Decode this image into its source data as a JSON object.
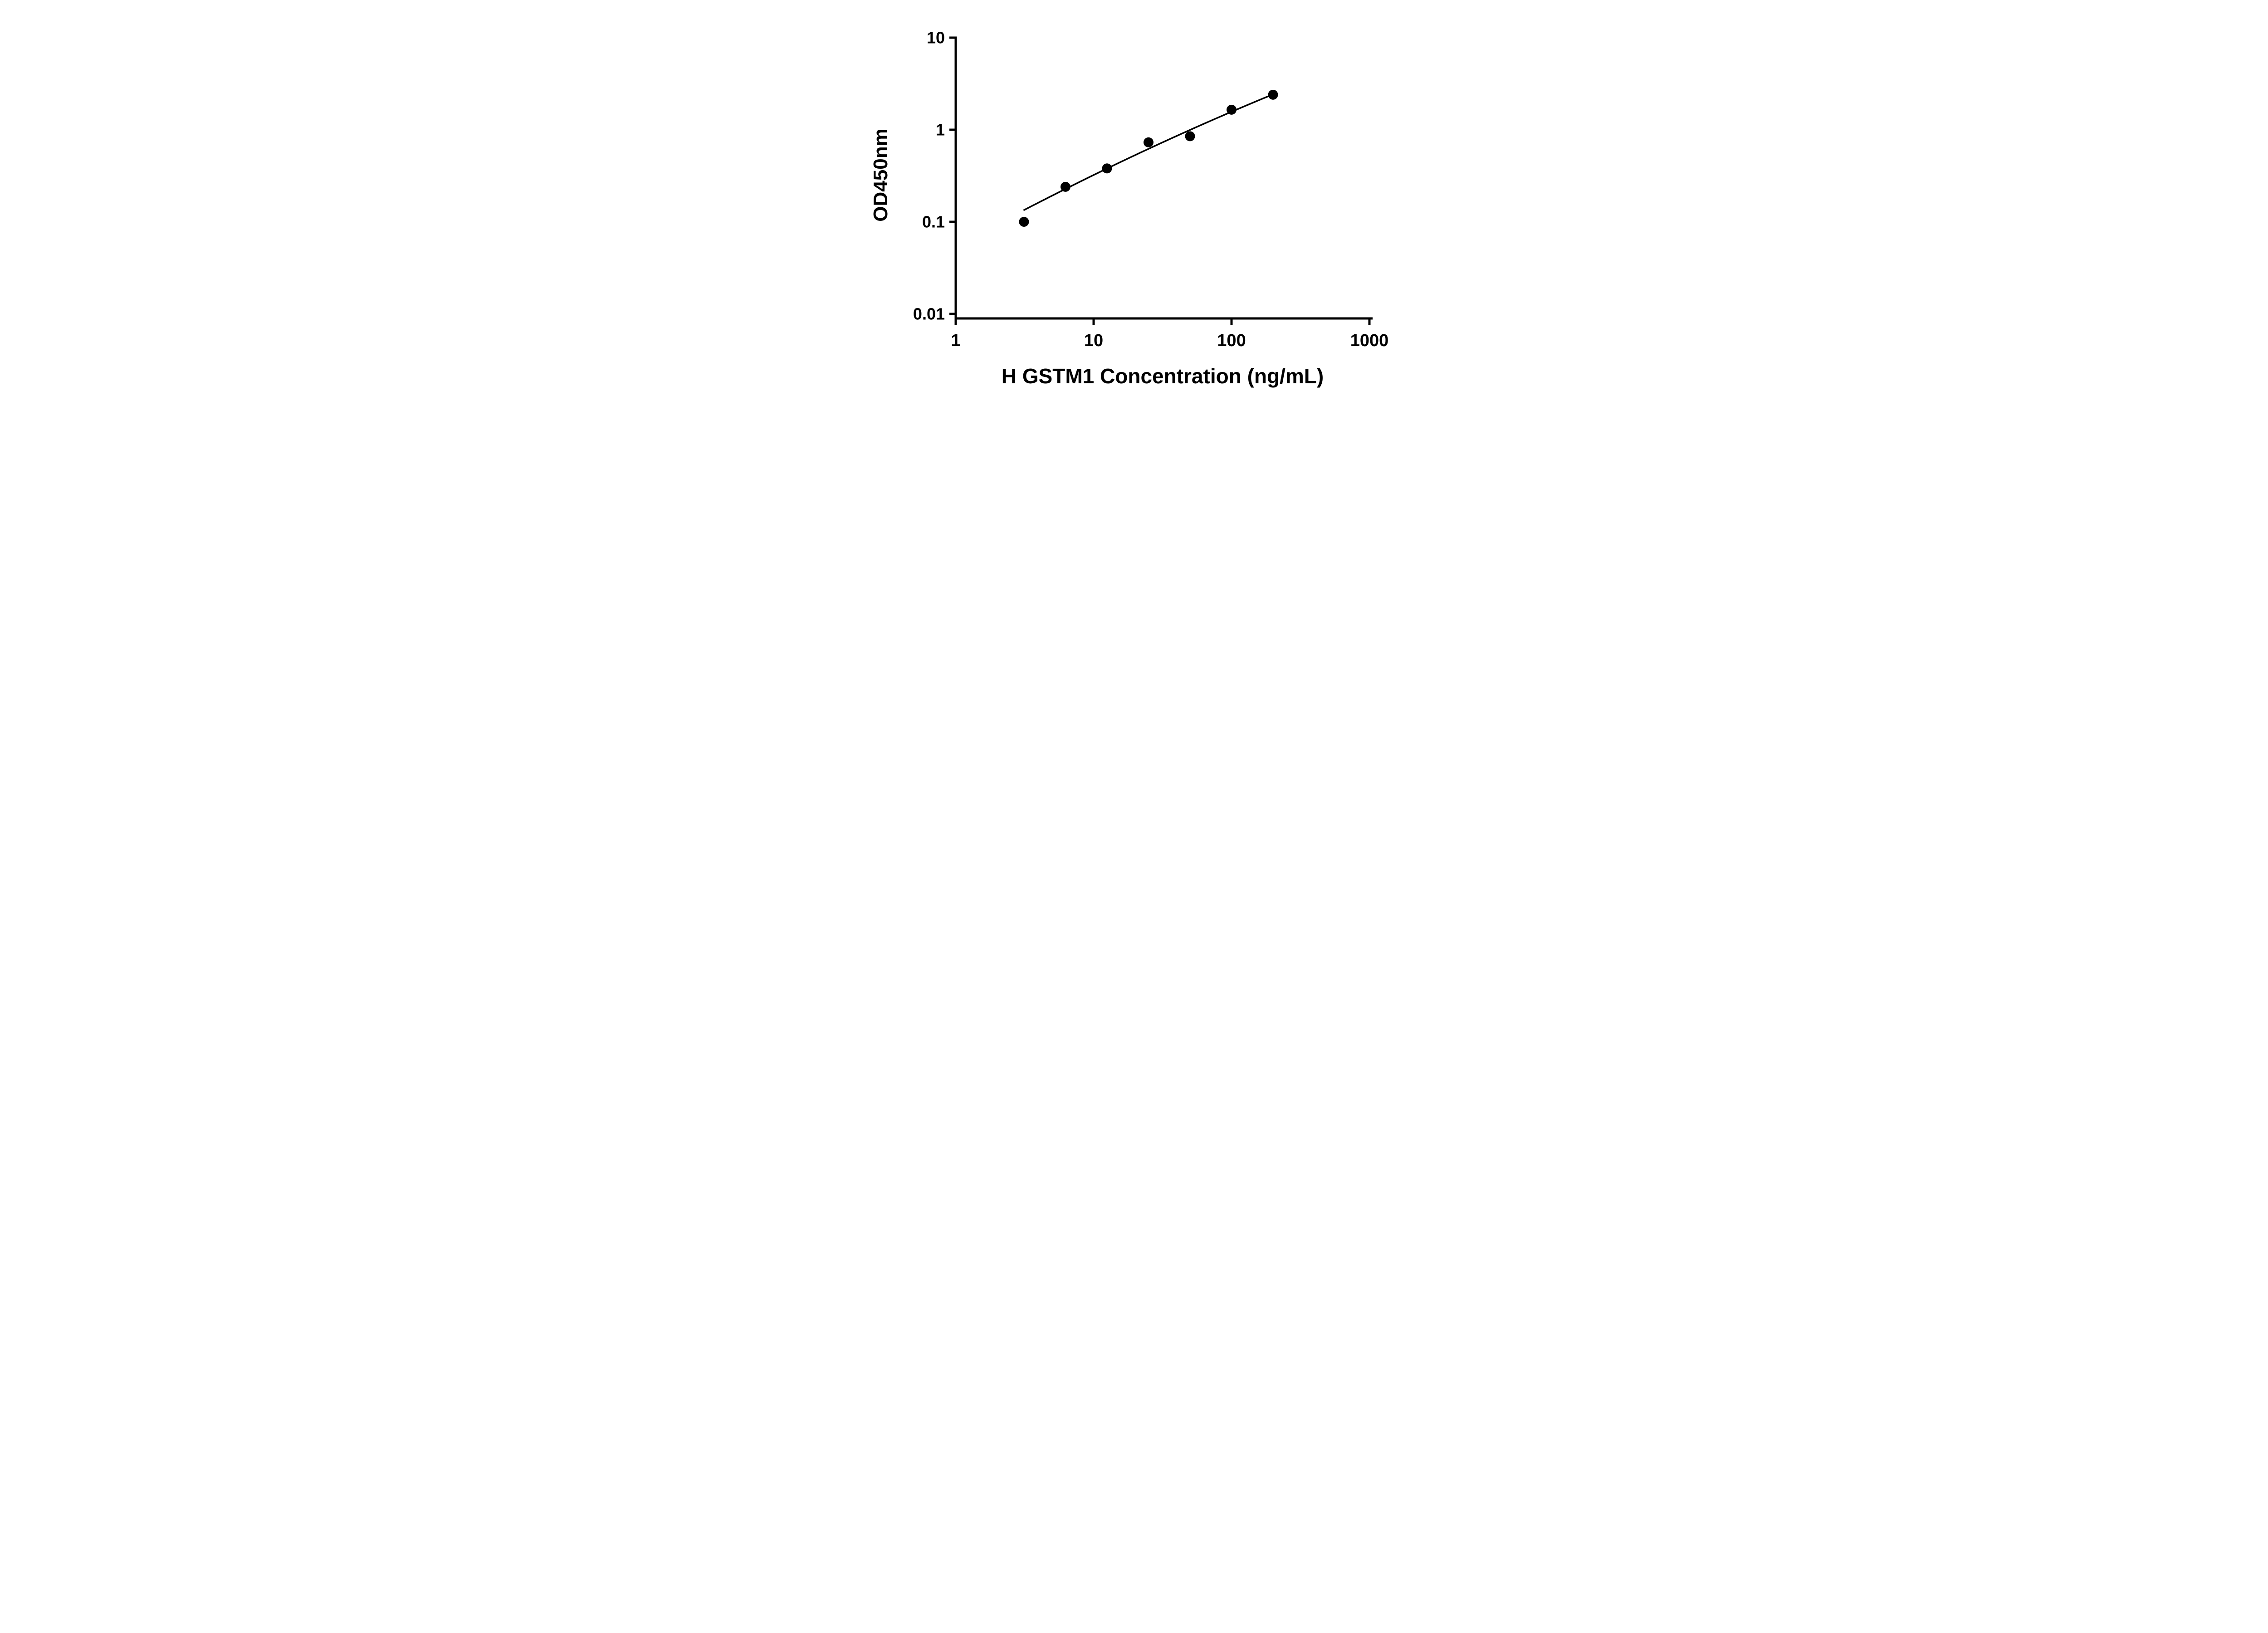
{
  "chart_data": {
    "type": "scatter",
    "title": "",
    "xlabel": "H GSTM1 Concentration (ng/mL)",
    "ylabel": "OD450nm",
    "x_scale": "log",
    "y_scale": "log",
    "xlim": [
      1,
      1000
    ],
    "ylim": [
      0.01,
      10
    ],
    "x_ticks": [
      1,
      10,
      100,
      1000
    ],
    "x_tick_labels": [
      "1",
      "10",
      "100",
      "1000"
    ],
    "y_ticks": [
      0.01,
      0.1,
      1,
      10
    ],
    "y_tick_labels": [
      "0.01",
      "0.1",
      "1",
      "10"
    ],
    "grid": "off",
    "legend": "none",
    "points": [
      {
        "x": 3.125,
        "y": 0.1
      },
      {
        "x": 6.25,
        "y": 0.24
      },
      {
        "x": 12.5,
        "y": 0.38
      },
      {
        "x": 25,
        "y": 0.73
      },
      {
        "x": 50,
        "y": 0.85
      },
      {
        "x": 100,
        "y": 1.65
      },
      {
        "x": 200,
        "y": 2.4
      }
    ],
    "trend_line": {
      "type": "quadratic-loglog-fit",
      "coeffs": {
        "a": -1.268,
        "b": 0.8208,
        "c": -0.0446
      },
      "x_start": 3.1,
      "x_end": 200
    },
    "marker_color": "#000000",
    "line_color": "#000000",
    "axis_color": "#000000"
  }
}
